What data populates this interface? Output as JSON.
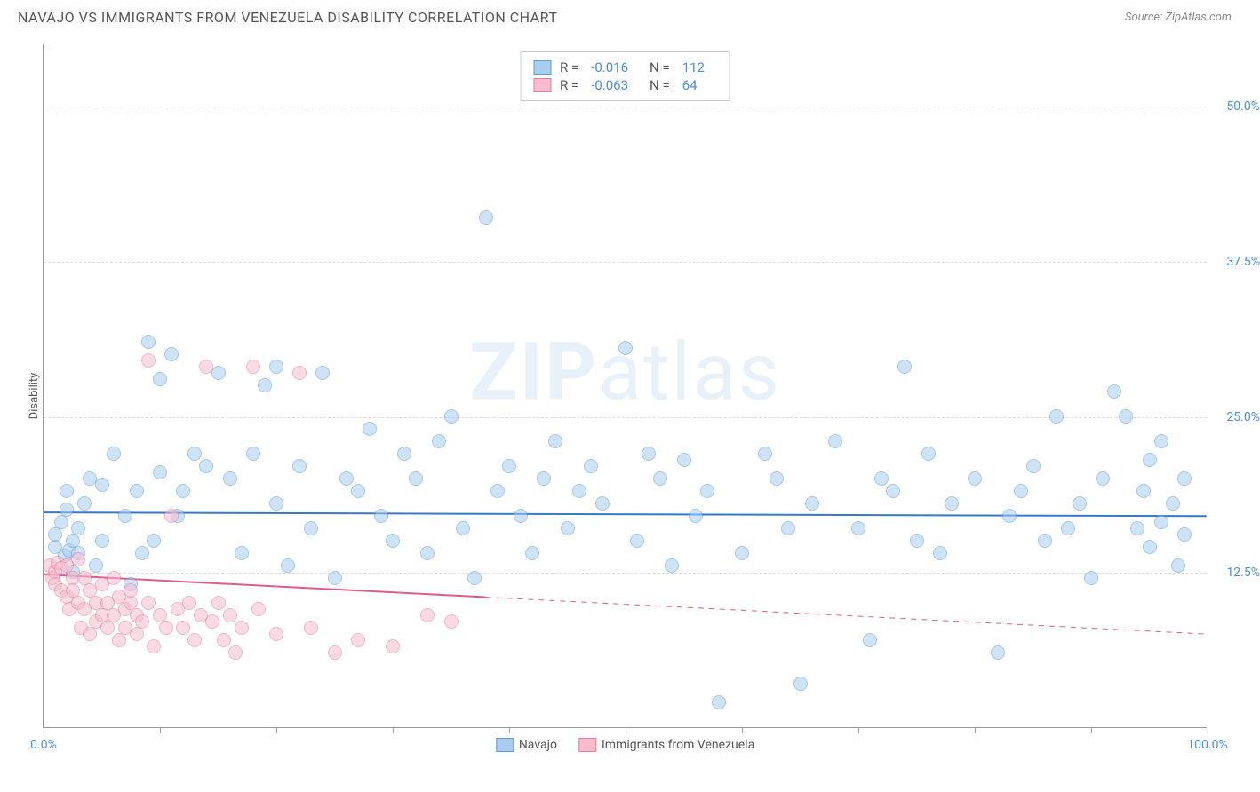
{
  "title": "NAVAJO VS IMMIGRANTS FROM VENEZUELA DISABILITY CORRELATION CHART",
  "source": "Source: ZipAtlas.com",
  "watermark": {
    "bold": "ZIP",
    "rest": "atlas"
  },
  "ylabel": "Disability",
  "chart": {
    "type": "scatter",
    "background_color": "#ffffff",
    "grid_color": "#dddddd",
    "xlim": [
      0,
      100
    ],
    "ylim": [
      0,
      55
    ],
    "yticks": [
      {
        "v": 12.5,
        "label": "12.5%"
      },
      {
        "v": 25.0,
        "label": "25.0%"
      },
      {
        "v": 37.5,
        "label": "37.5%"
      },
      {
        "v": 50.0,
        "label": "50.0%"
      }
    ],
    "xticks": [
      0,
      10,
      20,
      30,
      40,
      50,
      60,
      70,
      80,
      90,
      100
    ],
    "xtick_labels": {
      "0": "0.0%",
      "100": "100.0%"
    },
    "marker_radius": 8,
    "marker_stroke_width": 1.5,
    "series": [
      {
        "name": "Navajo",
        "fill": "#a9cdf0",
        "stroke": "#5f9bd9",
        "fill_opacity": 0.55,
        "R": "-0.016",
        "N": "112",
        "trend": {
          "y_start": 17.3,
          "y_end": 17.0,
          "x_start": 0,
          "x_end": 100,
          "solid_until": 100,
          "color": "#3878c9",
          "width": 2
        },
        "points": [
          [
            1,
            14.5
          ],
          [
            1,
            15.5
          ],
          [
            1.5,
            16.5
          ],
          [
            1.8,
            13.8
          ],
          [
            2,
            17.5
          ],
          [
            2,
            19
          ],
          [
            2.2,
            14.2
          ],
          [
            2.5,
            12.5
          ],
          [
            2.5,
            15
          ],
          [
            3,
            14
          ],
          [
            3,
            16
          ],
          [
            3.5,
            18
          ],
          [
            4,
            20
          ],
          [
            4.5,
            13
          ],
          [
            5,
            15
          ],
          [
            5,
            19.5
          ],
          [
            6,
            22
          ],
          [
            7,
            17
          ],
          [
            7.5,
            11.5
          ],
          [
            8,
            19
          ],
          [
            8.5,
            14
          ],
          [
            9,
            31
          ],
          [
            9.5,
            15
          ],
          [
            10,
            20.5
          ],
          [
            10,
            28
          ],
          [
            11,
            30
          ],
          [
            11.5,
            17
          ],
          [
            12,
            19
          ],
          [
            13,
            22
          ],
          [
            14,
            21
          ],
          [
            15,
            28.5
          ],
          [
            16,
            20
          ],
          [
            17,
            14
          ],
          [
            18,
            22
          ],
          [
            19,
            27.5
          ],
          [
            20,
            18
          ],
          [
            20,
            29
          ],
          [
            21,
            13
          ],
          [
            22,
            21
          ],
          [
            23,
            16
          ],
          [
            24,
            28.5
          ],
          [
            25,
            12
          ],
          [
            26,
            20
          ],
          [
            27,
            19
          ],
          [
            28,
            24
          ],
          [
            29,
            17
          ],
          [
            30,
            15
          ],
          [
            31,
            22
          ],
          [
            32,
            20
          ],
          [
            33,
            14
          ],
          [
            34,
            23
          ],
          [
            35,
            25
          ],
          [
            36,
            16
          ],
          [
            37,
            12
          ],
          [
            38,
            41
          ],
          [
            39,
            19
          ],
          [
            40,
            21
          ],
          [
            41,
            17
          ],
          [
            42,
            14
          ],
          [
            43,
            20
          ],
          [
            44,
            23
          ],
          [
            45,
            16
          ],
          [
            46,
            19
          ],
          [
            47,
            21
          ],
          [
            48,
            18
          ],
          [
            50,
            30.5
          ],
          [
            51,
            15
          ],
          [
            52,
            22
          ],
          [
            53,
            20
          ],
          [
            54,
            13
          ],
          [
            55,
            21.5
          ],
          [
            56,
            17
          ],
          [
            57,
            19
          ],
          [
            58,
            2
          ],
          [
            60,
            14
          ],
          [
            62,
            22
          ],
          [
            63,
            20
          ],
          [
            64,
            16
          ],
          [
            65,
            3.5
          ],
          [
            66,
            18
          ],
          [
            68,
            23
          ],
          [
            70,
            16
          ],
          [
            71,
            7
          ],
          [
            72,
            20
          ],
          [
            73,
            19
          ],
          [
            74,
            29
          ],
          [
            75,
            15
          ],
          [
            76,
            22
          ],
          [
            77,
            14
          ],
          [
            78,
            18
          ],
          [
            80,
            20
          ],
          [
            82,
            6
          ],
          [
            83,
            17
          ],
          [
            84,
            19
          ],
          [
            85,
            21
          ],
          [
            86,
            15
          ],
          [
            87,
            25
          ],
          [
            88,
            16
          ],
          [
            89,
            18
          ],
          [
            90,
            12
          ],
          [
            91,
            20
          ],
          [
            92,
            27
          ],
          [
            93,
            25
          ],
          [
            94,
            16
          ],
          [
            94.5,
            19
          ],
          [
            95,
            14.5
          ],
          [
            95,
            21.5
          ],
          [
            96,
            16.5
          ],
          [
            96,
            23
          ],
          [
            97,
            18
          ],
          [
            97.5,
            13
          ],
          [
            98,
            15.5
          ],
          [
            98,
            20
          ]
        ]
      },
      {
        "name": "Immigrants from Venezuela",
        "fill": "#f7bccd",
        "stroke": "#e87aa0",
        "fill_opacity": 0.55,
        "R": "-0.063",
        "N": "64",
        "trend": {
          "y_start": 12.3,
          "y_end": 7.5,
          "x_start": 0,
          "x_end": 100,
          "solid_until": 38,
          "color": "#e15a8a",
          "width": 2
        },
        "points": [
          [
            0.5,
            13
          ],
          [
            0.8,
            12
          ],
          [
            1,
            12.5
          ],
          [
            1,
            11.5
          ],
          [
            1.2,
            13.2
          ],
          [
            1.5,
            11
          ],
          [
            1.5,
            12.8
          ],
          [
            2,
            10.5
          ],
          [
            2,
            13
          ],
          [
            2.2,
            9.5
          ],
          [
            2.5,
            12
          ],
          [
            2.5,
            11
          ],
          [
            3,
            10
          ],
          [
            3,
            13.5
          ],
          [
            3.2,
            8
          ],
          [
            3.5,
            12
          ],
          [
            3.5,
            9.5
          ],
          [
            4,
            11
          ],
          [
            4,
            7.5
          ],
          [
            4.5,
            8.5
          ],
          [
            4.5,
            10
          ],
          [
            5,
            9
          ],
          [
            5,
            11.5
          ],
          [
            5.5,
            10
          ],
          [
            5.5,
            8
          ],
          [
            6,
            9
          ],
          [
            6,
            12
          ],
          [
            6.5,
            7
          ],
          [
            6.5,
            10.5
          ],
          [
            7,
            9.5
          ],
          [
            7,
            8
          ],
          [
            7.5,
            10
          ],
          [
            7.5,
            11
          ],
          [
            8,
            7.5
          ],
          [
            8,
            9
          ],
          [
            8.5,
            8.5
          ],
          [
            9,
            10
          ],
          [
            9,
            29.5
          ],
          [
            9.5,
            6.5
          ],
          [
            10,
            9
          ],
          [
            10.5,
            8
          ],
          [
            11,
            17
          ],
          [
            11.5,
            9.5
          ],
          [
            12,
            8
          ],
          [
            12.5,
            10
          ],
          [
            13,
            7
          ],
          [
            13.5,
            9
          ],
          [
            14,
            29
          ],
          [
            14.5,
            8.5
          ],
          [
            15,
            10
          ],
          [
            15.5,
            7
          ],
          [
            16,
            9
          ],
          [
            16.5,
            6
          ],
          [
            17,
            8
          ],
          [
            18,
            29
          ],
          [
            18.5,
            9.5
          ],
          [
            20,
            7.5
          ],
          [
            22,
            28.5
          ],
          [
            23,
            8
          ],
          [
            25,
            6
          ],
          [
            27,
            7
          ],
          [
            30,
            6.5
          ],
          [
            33,
            9
          ],
          [
            35,
            8.5
          ]
        ]
      }
    ]
  },
  "legend_bottom": [
    {
      "label": "Navajo",
      "fill": "#a9cdf0",
      "stroke": "#5f9bd9"
    },
    {
      "label": "Immigrants from Venezuela",
      "fill": "#f7bccd",
      "stroke": "#e87aa0"
    }
  ]
}
